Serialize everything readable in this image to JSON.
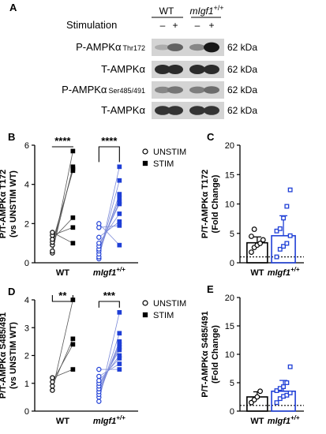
{
  "colors": {
    "wt": "#000000",
    "migf1": "#1f3fd6",
    "blot_bg": "#d4d4d4"
  },
  "blot": {
    "panel_letter": "A",
    "stimulation_label": "Stimulation",
    "groups": [
      {
        "name": "WT",
        "italic": false
      },
      {
        "name": "mIgf1",
        "italic": true,
        "sup": "+/+"
      }
    ],
    "lane_marks": [
      "–",
      "+",
      "–",
      "+"
    ],
    "rows": [
      {
        "label": "P-AMPKα",
        "sub": "Thr172",
        "kda": "62 kDa",
        "intensity": [
          0.15,
          0.55,
          0.35,
          0.95
        ]
      },
      {
        "label": "T-AMPKα",
        "sub": "",
        "kda": "62 kDa",
        "intensity": [
          0.85,
          0.85,
          0.85,
          0.85
        ]
      },
      {
        "label": "P-AMPKα",
        "sub": "Ser485/491",
        "kda": "62 kDa",
        "intensity": [
          0.35,
          0.45,
          0.4,
          0.5
        ]
      },
      {
        "label": "T-AMPKα",
        "sub": "",
        "kda": "62 kDa",
        "intensity": [
          0.8,
          0.8,
          0.8,
          0.8
        ]
      }
    ]
  },
  "chart_data": [
    {
      "panel": "B",
      "type": "scatter",
      "ylabel_lines": [
        "P/T-AMPKα T172",
        "(vs UNSTIM WT)"
      ],
      "ylim": [
        0,
        6
      ],
      "yticks": [
        "0",
        "2",
        "4",
        "6"
      ],
      "categories": [
        "WT",
        "mIgf1"
      ],
      "category_sup": [
        "",
        "+/+"
      ],
      "significance": [
        "****",
        "****"
      ],
      "legend": [
        "UNSTIM",
        "STIM"
      ],
      "pairs": {
        "WT": [
          [
            0.5,
            5.7
          ],
          [
            0.6,
            4.9
          ],
          [
            0.9,
            4.8
          ],
          [
            1.05,
            4.7
          ],
          [
            1.2,
            2.3
          ],
          [
            1.4,
            1.8
          ],
          [
            1.55,
            1.0
          ]
        ],
        "mIgf1": [
          [
            0.2,
            4.9
          ],
          [
            0.3,
            4.2
          ],
          [
            0.45,
            3.5
          ],
          [
            0.6,
            3.3
          ],
          [
            0.7,
            3.1
          ],
          [
            0.85,
            3.0
          ],
          [
            1.0,
            2.5
          ],
          [
            1.3,
            2.1
          ],
          [
            1.8,
            1.9
          ],
          [
            2.0,
            0.9
          ]
        ]
      }
    },
    {
      "panel": "C",
      "type": "bar",
      "ylabel_lines": [
        "P/T-AMPKα T172",
        "(Fold Change)"
      ],
      "ylim": [
        0,
        20
      ],
      "yticks": [
        "0",
        "5",
        "10",
        "15",
        "20"
      ],
      "categories": [
        "WT",
        "mIgf1"
      ],
      "category_sup": [
        "",
        "+/+"
      ],
      "means": [
        3.4,
        4.6
      ],
      "sd": [
        1.0,
        3.4
      ],
      "points": {
        "WT": [
          1.8,
          2.6,
          3.0,
          3.3,
          3.9,
          4.5,
          5.7
        ],
        "mIgf1": [
          1.0,
          2.3,
          2.8,
          3.3,
          4.6,
          5.4,
          5.8,
          7.6,
          9.6,
          12.4
        ]
      },
      "reference_line": 1
    },
    {
      "panel": "D",
      "type": "scatter",
      "ylabel_lines": [
        "P/T-AMPKα S485/491",
        "(vs UNSTIM WT)"
      ],
      "ylim": [
        0,
        4
      ],
      "yticks": [
        "0",
        "1",
        "2",
        "3",
        "4"
      ],
      "categories": [
        "WT",
        "mIgf1"
      ],
      "category_sup": [
        "",
        "+/+"
      ],
      "significance": [
        "**",
        "***"
      ],
      "legend": [
        "UNSTIM",
        "STIM"
      ],
      "pairs": {
        "WT": [
          [
            0.75,
            4.0
          ],
          [
            0.9,
            2.6
          ],
          [
            1.05,
            2.4
          ],
          [
            1.2,
            1.5
          ]
        ],
        "mIgf1": [
          [
            0.35,
            3.55
          ],
          [
            0.5,
            2.8
          ],
          [
            0.6,
            2.5
          ],
          [
            0.7,
            2.4
          ],
          [
            0.8,
            2.3
          ],
          [
            0.9,
            2.2
          ],
          [
            1.0,
            2.0
          ],
          [
            1.1,
            1.9
          ],
          [
            1.25,
            1.7
          ],
          [
            1.5,
            1.5
          ]
        ]
      }
    },
    {
      "panel": "E",
      "type": "bar",
      "ylabel_lines": [
        "P/T-AMPKα S485/491",
        "(Fold Change)"
      ],
      "ylim": [
        0,
        20
      ],
      "yticks": [
        "0",
        "5",
        "10",
        "15",
        "20"
      ],
      "categories": [
        "WT",
        "mIgf1"
      ],
      "category_sup": [
        "",
        "+/+"
      ],
      "means": [
        2.5,
        3.5
      ],
      "sd": [
        0.9,
        1.9
      ],
      "points": {
        "WT": [
          1.5,
          2.0,
          2.5,
          3.5
        ],
        "mIgf1": [
          1.5,
          2.2,
          2.6,
          2.8,
          3.2,
          3.6,
          4.0,
          4.3,
          5.0,
          7.8
        ]
      },
      "reference_line": 1
    }
  ]
}
